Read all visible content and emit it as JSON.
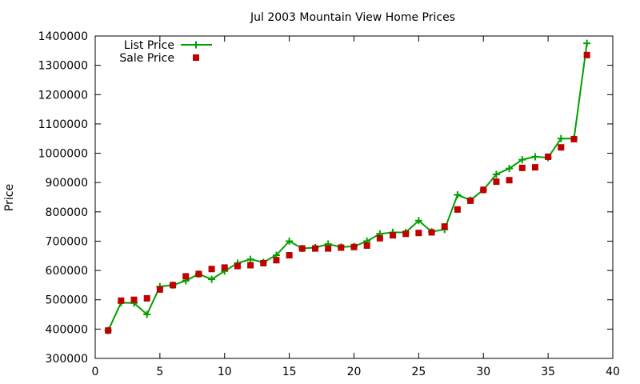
{
  "chart_data": {
    "type": "line",
    "title": "Jul 2003 Mountain View Home Prices",
    "xlabel": "",
    "ylabel": "Price",
    "xlim": [
      0,
      40
    ],
    "ylim": [
      300000,
      1400000
    ],
    "xticks": [
      0,
      5,
      10,
      15,
      20,
      25,
      30,
      35,
      40
    ],
    "yticks": [
      300000,
      400000,
      500000,
      600000,
      700000,
      800000,
      900000,
      1000000,
      1100000,
      1200000,
      1300000,
      1400000
    ],
    "grid": false,
    "legend": "top-left",
    "x": [
      1,
      2,
      3,
      4,
      5,
      6,
      7,
      8,
      9,
      10,
      11,
      12,
      13,
      14,
      15,
      16,
      17,
      18,
      19,
      20,
      21,
      22,
      23,
      24,
      25,
      26,
      27,
      28,
      29,
      30,
      31,
      32,
      33,
      34,
      35,
      36,
      37,
      38
    ],
    "series": [
      {
        "name": "List Price",
        "style": "linespoints",
        "color": "#00a000",
        "values": [
          395000,
          490000,
          489000,
          450000,
          545000,
          550000,
          565000,
          588000,
          570000,
          598000,
          625000,
          638000,
          628000,
          652000,
          700000,
          675000,
          678000,
          690000,
          680000,
          682000,
          700000,
          725000,
          730000,
          730000,
          770000,
          732000,
          740000,
          858000,
          840000,
          875000,
          928000,
          948000,
          978000,
          988000,
          985000,
          1050000,
          1050000,
          1375000
        ]
      },
      {
        "name": "Sale Price",
        "style": "points",
        "color": "#c00000",
        "values": [
          395000,
          497000,
          500000,
          505000,
          535000,
          550000,
          580000,
          588000,
          605000,
          610000,
          615000,
          618000,
          625000,
          635000,
          652000,
          675000,
          675000,
          675000,
          678000,
          680000,
          685000,
          710000,
          720000,
          725000,
          728000,
          730000,
          750000,
          808000,
          838000,
          875000,
          903000,
          908000,
          950000,
          952000,
          988000,
          1020000,
          1048000,
          1335000
        ]
      }
    ]
  }
}
